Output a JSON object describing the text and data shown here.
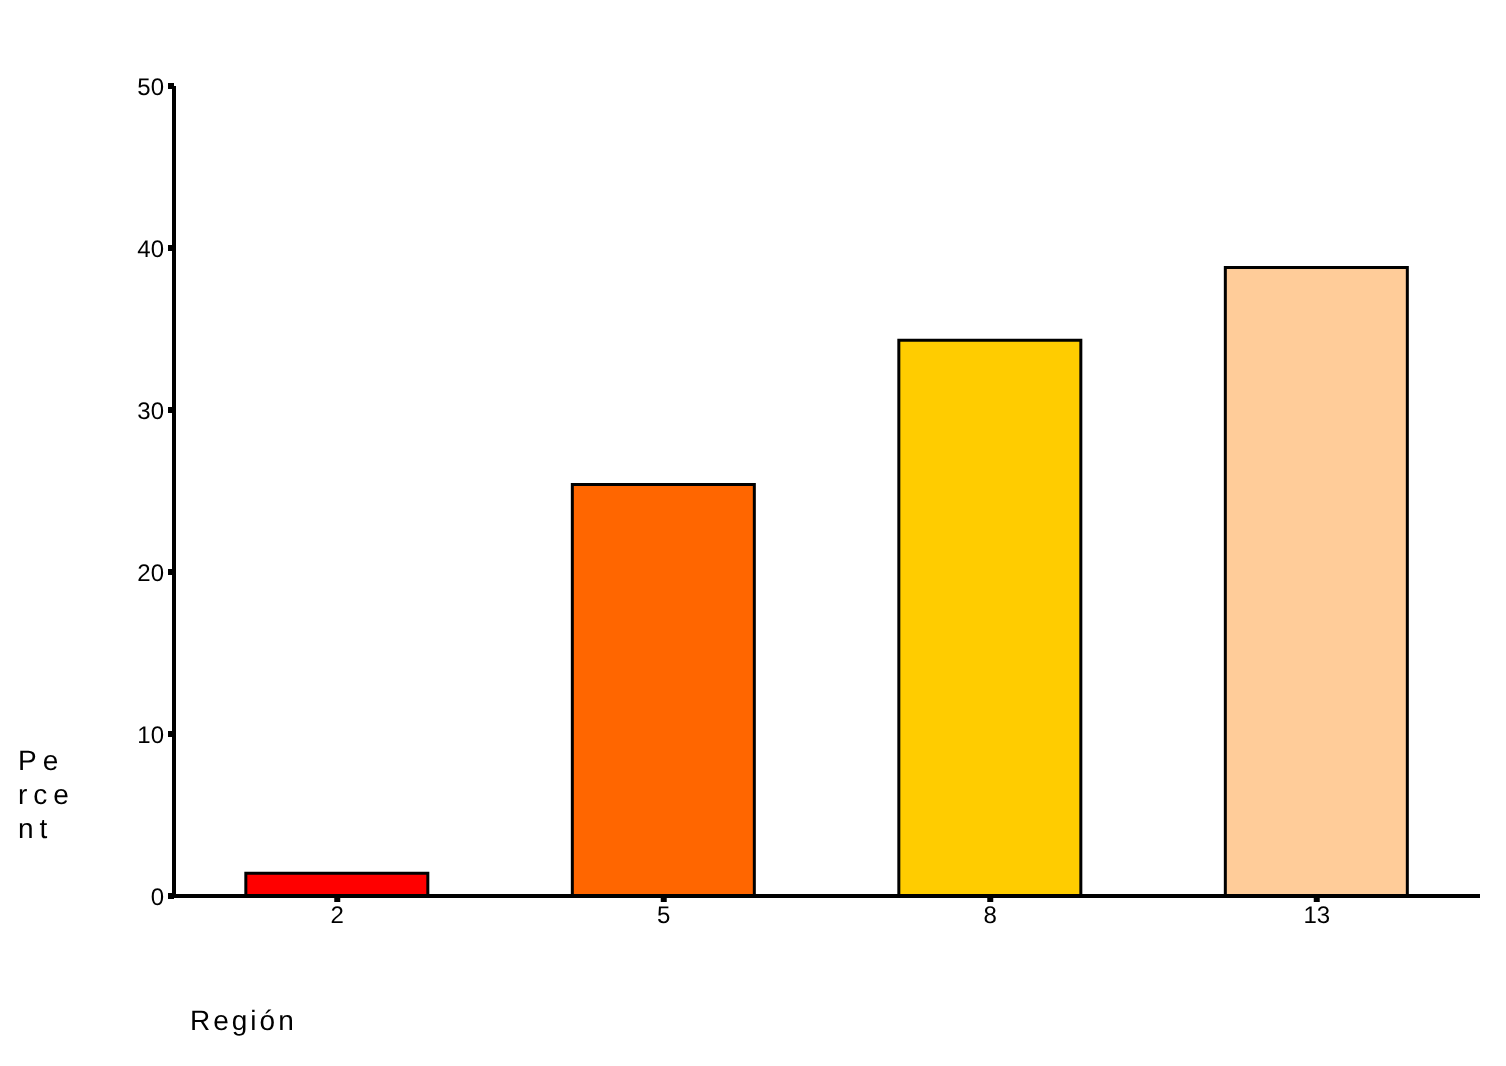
{
  "chart_data": {
    "type": "bar",
    "xlabel": "Región",
    "ylabel": "Percent",
    "categories": [
      "2",
      "5",
      "8",
      "13"
    ],
    "values": [
      1.4,
      25.4,
      34.3,
      38.8
    ],
    "colors": [
      "#ff0000",
      "#ff6600",
      "#ffcc00",
      "#ffcc99"
    ],
    "ylim": [
      0,
      50
    ],
    "yticks": [
      0,
      10,
      20,
      30,
      40,
      50
    ],
    "grid": false
  }
}
